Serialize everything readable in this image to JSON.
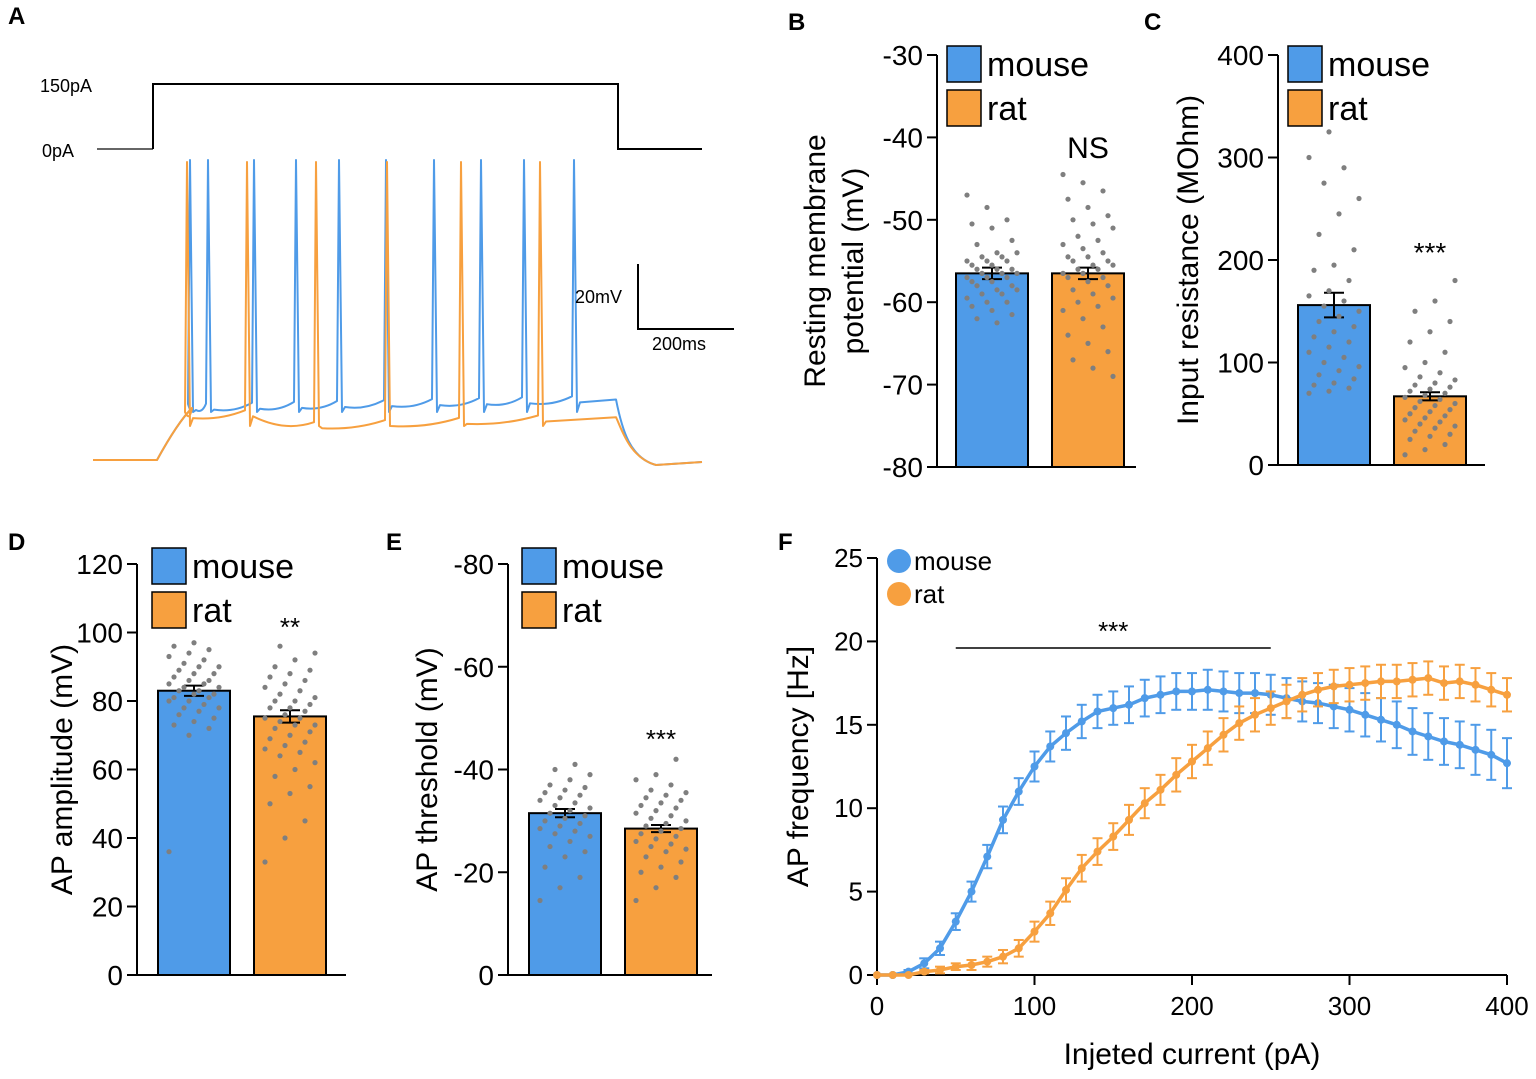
{
  "colors": {
    "mouse": "#4f9be8",
    "rat": "#f7a03f",
    "dots": "#7f7f7f",
    "axis": "#000000"
  },
  "panels": {
    "A": "A",
    "B": "B",
    "C": "C",
    "D": "D",
    "E": "E",
    "F": "F"
  },
  "chart_data": [
    {
      "panel": "A",
      "type": "line",
      "title": "",
      "stimulus_labels": {
        "high": "150pA",
        "low": "0pA"
      },
      "stimulus_pA": {
        "high": 150,
        "low": 0
      },
      "scalebar": {
        "voltage": "20mV",
        "time": "200ms"
      },
      "series": [
        {
          "name": "mouse",
          "spike_count": 11
        },
        {
          "name": "rat",
          "spike_count": 7
        }
      ]
    },
    {
      "panel": "B",
      "type": "bar",
      "ylabel_lines": [
        "Resting membrane",
        "potential (mV)"
      ],
      "ylim": [
        -80,
        -30
      ],
      "yticks": [
        "-30",
        "-40",
        "-50",
        "-60",
        "-70",
        "-80"
      ],
      "yticks_values": [
        -30,
        -40,
        -50,
        -60,
        -70,
        -80
      ],
      "categories": [
        "mouse",
        "rat"
      ],
      "values": [
        -56.5,
        -56.5
      ],
      "errors": [
        0.7,
        0.7
      ],
      "legend": [
        "mouse",
        "rat"
      ],
      "annotation": "NS",
      "points": [
        [
          -47,
          -48.5,
          -50,
          -50.5,
          -51,
          -52.5,
          -53,
          -54,
          -54,
          -54.5,
          -54.5,
          -55,
          -55,
          -55,
          -55.5,
          -55.5,
          -56,
          -56,
          -56,
          -56.5,
          -56.5,
          -56.5,
          -57,
          -57,
          -57,
          -57.5,
          -57.5,
          -58,
          -58,
          -58.5,
          -58.5,
          -59,
          -59,
          -59.5,
          -60,
          -60,
          -60.5,
          -61,
          -61.5,
          -62,
          -62.5
        ],
        [
          -44.5,
          -45.5,
          -46.5,
          -47.5,
          -48.5,
          -49.5,
          -50,
          -50.5,
          -51,
          -52,
          -52.5,
          -53,
          -53.5,
          -54,
          -54.5,
          -54.5,
          -55,
          -55,
          -55.5,
          -55.5,
          -56,
          -56,
          -56.5,
          -56.5,
          -57,
          -57,
          -57.5,
          -58,
          -58.5,
          -59,
          -59.5,
          -60,
          -60.5,
          -61,
          -62,
          -63,
          -64,
          -65,
          -66,
          -67,
          -68,
          -69
        ]
      ]
    },
    {
      "panel": "C",
      "type": "bar",
      "ylabel": "Input resistance (MOhm)",
      "ylim": [
        0,
        400
      ],
      "yticks": [
        "0",
        "100",
        "200",
        "300",
        "400"
      ],
      "yticks_values": [
        0,
        100,
        200,
        300,
        400
      ],
      "categories": [
        "mouse",
        "rat"
      ],
      "values": [
        156,
        67
      ],
      "errors": [
        12,
        4
      ],
      "legend": [
        "mouse",
        "rat"
      ],
      "annotation": "***",
      "points": [
        [
          70,
          72,
          75,
          78,
          80,
          84,
          88,
          92,
          96,
          100,
          105,
          110,
          115,
          120,
          125,
          130,
          135,
          140,
          145,
          150,
          155,
          160,
          165,
          170,
          180,
          190,
          195,
          210,
          225,
          245,
          260,
          275,
          290,
          300,
          325
        ],
        [
          10,
          15,
          20,
          25,
          28,
          30,
          33,
          36,
          38,
          40,
          42,
          44,
          46,
          48,
          50,
          52,
          54,
          56,
          58,
          60,
          62,
          64,
          66,
          68,
          70,
          72,
          74,
          76,
          78,
          80,
          83,
          86,
          90,
          95,
          100,
          110,
          120,
          130,
          140,
          150,
          160,
          180
        ]
      ]
    },
    {
      "panel": "D",
      "type": "bar",
      "ylabel": "AP amplitude (mV)",
      "ylim": [
        0,
        120
      ],
      "yticks": [
        "0",
        "20",
        "40",
        "60",
        "80",
        "100",
        "120"
      ],
      "yticks_values": [
        0,
        20,
        40,
        60,
        80,
        100,
        120
      ],
      "categories": [
        "mouse",
        "rat"
      ],
      "values": [
        83,
        75.5
      ],
      "errors": [
        1.5,
        1.8
      ],
      "legend": [
        "mouse",
        "rat"
      ],
      "annotation": "**",
      "points": [
        [
          36,
          70,
          72,
          73,
          74,
          75,
          76,
          77,
          78,
          78,
          79,
          80,
          80,
          81,
          81,
          82,
          82,
          83,
          83,
          84,
          84,
          85,
          85,
          86,
          86,
          87,
          88,
          88,
          89,
          90,
          90,
          91,
          92,
          93,
          94,
          95,
          96,
          97
        ],
        [
          33,
          40,
          45,
          50,
          53,
          55,
          58,
          60,
          62,
          64,
          65,
          66,
          67,
          68,
          69,
          70,
          71,
          72,
          73,
          73,
          74,
          75,
          75,
          76,
          77,
          78,
          78,
          79,
          80,
          80,
          81,
          82,
          83,
          84,
          85,
          86,
          87,
          88,
          89,
          90,
          92,
          94,
          96
        ]
      ]
    },
    {
      "panel": "E",
      "type": "bar",
      "ylabel": "AP threshold (mV)",
      "ylim": [
        0,
        -80
      ],
      "yticks": [
        "0",
        "-20",
        "-40",
        "-60",
        "-80"
      ],
      "yticks_values": [
        0,
        -20,
        -40,
        -60,
        -80
      ],
      "categories": [
        "mouse",
        "rat"
      ],
      "values": [
        -31.5,
        -28.5
      ],
      "errors": [
        0.8,
        0.7
      ],
      "legend": [
        "mouse",
        "rat"
      ],
      "annotation": "***",
      "points": [
        [
          -14.5,
          -17,
          -19,
          -21,
          -23,
          -24,
          -25,
          -26,
          -27,
          -27.5,
          -28,
          -28.5,
          -29,
          -29.5,
          -30,
          -30.5,
          -31,
          -31.5,
          -32,
          -32.5,
          -33,
          -33.5,
          -34,
          -34.5,
          -35,
          -35.5,
          -36,
          -36.5,
          -37,
          -38,
          -39,
          -40,
          -41
        ],
        [
          -14.5,
          -17,
          -19,
          -20,
          -21,
          -22,
          -23,
          -24,
          -24.5,
          -25,
          -25.5,
          -26,
          -26.5,
          -27,
          -27.5,
          -28,
          -28.5,
          -29,
          -29.5,
          -30,
          -30.5,
          -31,
          -31.5,
          -32,
          -32.5,
          -33,
          -33.5,
          -34,
          -34.5,
          -35,
          -35.5,
          -36,
          -37,
          -38,
          -39,
          -42
        ]
      ]
    },
    {
      "panel": "F",
      "type": "line",
      "xlabel": "Injeted current (pA)",
      "ylabel": "AP frequency [Hz]",
      "xlim": [
        0,
        400
      ],
      "ylim": [
        0,
        25
      ],
      "xticks": [
        "0",
        "100",
        "200",
        "300",
        "400"
      ],
      "xticks_values": [
        0,
        100,
        200,
        300,
        400
      ],
      "yticks": [
        "0",
        "5",
        "10",
        "15",
        "20",
        "25"
      ],
      "yticks_values": [
        0,
        5,
        10,
        15,
        20,
        25
      ],
      "x": [
        0,
        10,
        20,
        30,
        40,
        50,
        60,
        70,
        80,
        90,
        100,
        110,
        120,
        130,
        140,
        150,
        160,
        170,
        180,
        190,
        200,
        210,
        220,
        230,
        240,
        250,
        260,
        270,
        280,
        290,
        300,
        310,
        320,
        330,
        340,
        350,
        360,
        370,
        380,
        390,
        400
      ],
      "series": [
        {
          "name": "mouse",
          "values": [
            0,
            0,
            0.2,
            0.7,
            1.6,
            3.2,
            5.0,
            7.1,
            9.3,
            11.0,
            12.5,
            13.7,
            14.5,
            15.2,
            15.8,
            16.0,
            16.2,
            16.6,
            16.8,
            17.0,
            17.0,
            17.1,
            17.0,
            16.9,
            16.9,
            16.8,
            16.6,
            16.4,
            16.3,
            16.1,
            15.9,
            15.6,
            15.3,
            15.0,
            14.6,
            14.3,
            14.0,
            13.8,
            13.5,
            13.2,
            12.7
          ],
          "errors": [
            0,
            0,
            0.1,
            0.3,
            0.4,
            0.5,
            0.6,
            0.7,
            0.8,
            0.8,
            0.9,
            0.9,
            1.0,
            1.0,
            1.0,
            1.0,
            1.1,
            1.1,
            1.1,
            1.1,
            1.1,
            1.2,
            1.2,
            1.2,
            1.2,
            1.2,
            1.2,
            1.2,
            1.2,
            1.3,
            1.3,
            1.3,
            1.3,
            1.4,
            1.4,
            1.4,
            1.4,
            1.4,
            1.5,
            1.5,
            1.5
          ]
        },
        {
          "name": "rat",
          "values": [
            0,
            0,
            0,
            0.2,
            0.3,
            0.5,
            0.6,
            0.8,
            1.1,
            1.6,
            2.6,
            3.7,
            5.1,
            6.4,
            7.4,
            8.3,
            9.3,
            10.3,
            11.1,
            12.0,
            12.8,
            13.6,
            14.4,
            15.1,
            15.6,
            16.0,
            16.4,
            16.8,
            17.1,
            17.3,
            17.4,
            17.5,
            17.6,
            17.6,
            17.7,
            17.8,
            17.5,
            17.6,
            17.4,
            17.1,
            16.8
          ],
          "errors": [
            0,
            0,
            0,
            0.1,
            0.2,
            0.2,
            0.3,
            0.3,
            0.4,
            0.5,
            0.6,
            0.7,
            0.7,
            0.8,
            0.8,
            0.8,
            0.9,
            0.9,
            0.9,
            1.0,
            1.0,
            1.0,
            1.0,
            1.0,
            1.0,
            1.0,
            1.0,
            1.0,
            1.0,
            1.0,
            1.0,
            1.0,
            1.0,
            1.0,
            1.0,
            1.0,
            1.0,
            1.0,
            1.0,
            1.0,
            1.0
          ]
        }
      ],
      "legend": [
        "mouse",
        "rat"
      ],
      "significance": {
        "label": "***",
        "x_start": 50,
        "x_end": 250
      }
    }
  ]
}
